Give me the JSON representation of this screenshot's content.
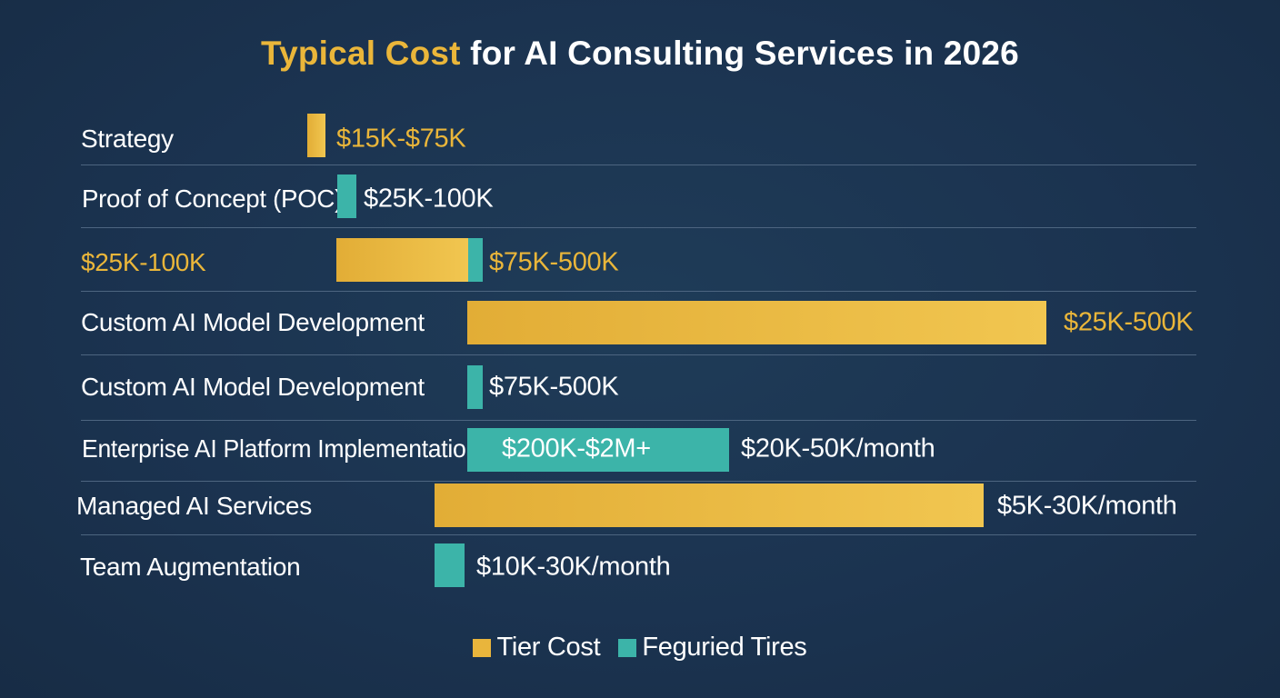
{
  "title": {
    "accent": "Typical Cost",
    "rest": " for AI Consulting Services in 2026"
  },
  "colors": {
    "gold": "#eab63a",
    "teal": "#3cb4a9",
    "background": "#1b3350"
  },
  "legend": [
    {
      "label": "Tier Cost",
      "color": "gold"
    },
    {
      "label": "Feguried Tires",
      "color": "teal"
    }
  ],
  "chart_data": {
    "type": "bar",
    "orientation": "horizontal",
    "title": "Typical Cost for AI Consulting Services in 2026",
    "grid": false,
    "legend_position": "bottom",
    "rows": [
      {
        "label": "Strategy",
        "label_color": "white",
        "bars": [
          {
            "series": "Tier Cost"
          }
        ],
        "value_label": "$15K-$75K",
        "value_label_color": "gold"
      },
      {
        "label": "Proof of Concept (POC)",
        "label_color": "white",
        "bars": [
          {
            "series": "Feguried Tires"
          }
        ],
        "value_label": "$25K-100K",
        "value_label_color": "white"
      },
      {
        "label": "$25K-100K",
        "label_color": "gold",
        "bars": [
          {
            "series": "Tier Cost"
          },
          {
            "series": "Feguried Tires"
          }
        ],
        "value_label": "$75K-500K",
        "value_label_color": "gold"
      },
      {
        "label": "Custom AI Model Development",
        "label_color": "white",
        "bars": [
          {
            "series": "Tier Cost"
          }
        ],
        "value_label": "$25K-500K",
        "value_label_color": "gold"
      },
      {
        "label": "Custom AI Model Development",
        "label_color": "white",
        "bars": [
          {
            "series": "Feguried Tires"
          }
        ],
        "value_label": "$75K-500K",
        "value_label_color": "white"
      },
      {
        "label": "Enterprise AI Platform Implementation",
        "label_color": "white",
        "bars": [
          {
            "series": "Feguried Tires",
            "inside_label": "$200K-$2M+"
          }
        ],
        "value_label": "$20K-50K/month",
        "value_label_color": "white"
      },
      {
        "label": "Managed AI Services",
        "label_color": "white",
        "bars": [
          {
            "series": "Tier Cost"
          }
        ],
        "value_label": "$5K-30K/month",
        "value_label_color": "white"
      },
      {
        "label": "Team Augmentation",
        "label_color": "white",
        "bars": [
          {
            "series": "Feguried Tires"
          }
        ],
        "value_label": "$10K-30K/month",
        "value_label_color": "white"
      }
    ]
  }
}
